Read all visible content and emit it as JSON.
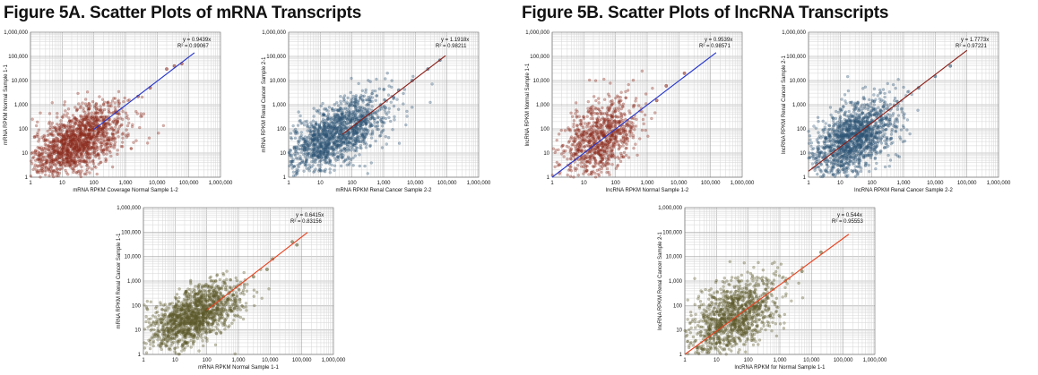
{
  "figures": {
    "a_title": "Figure 5A. Scatter Plots of mRNA Transcripts",
    "b_title": "Figure 5B. Scatter Plots of lncRNA Transcripts"
  },
  "colors": {
    "red_points": "#8b2a1e",
    "blue_points": "#2e5575",
    "olive_points": "#5d5a2c",
    "blue_line": "#2233cc",
    "darkred_line": "#8b1a12",
    "orange_line": "#e8401c"
  },
  "chart_data": [
    {
      "id": "p1",
      "type": "scatter",
      "log_scale": true,
      "xlabel": "mRNA RPKM Coverage Normal Sample 1-2",
      "ylabel": "mRNA RPKM Normal Sample 1-1",
      "x_ticks": [
        "1",
        "10",
        "100",
        "1,000",
        "10,000",
        "100,000",
        "1,000,000"
      ],
      "y_ticks": [
        "1",
        "10",
        "100",
        "1,000",
        "10,000",
        "100,000",
        "1,000,000"
      ],
      "xlim": [
        1,
        1000000
      ],
      "ylim": [
        1,
        1000000
      ],
      "trend_equation": "y = 0.9439x",
      "r_squared": "R² = 0.99067",
      "trend_x_range": [
        100,
        150000
      ],
      "point_color": "red",
      "line_color": "blue",
      "cloud": {
        "center_log10": [
          1.5,
          1.5
        ],
        "spread_log10": [
          0.75,
          0.62
        ],
        "count": 1500
      },
      "high_points": [
        [
          2500,
          2200
        ],
        [
          6000,
          5000
        ],
        [
          20000,
          30000
        ],
        [
          35000,
          40000
        ],
        [
          60000,
          50000
        ]
      ],
      "grid": true,
      "legend": "none"
    },
    {
      "id": "p2",
      "type": "scatter",
      "log_scale": true,
      "xlabel": "mRNA RPKM Renal Cancer Sample 2-2",
      "ylabel": "mRNA RPKM Renal Cancer Sample 2-1",
      "x_ticks": [
        "1",
        "10",
        "100",
        "1,000",
        "10,000",
        "100,000",
        "1,000,000"
      ],
      "y_ticks": [
        "1",
        "10",
        "100",
        "1,000",
        "10,000",
        "100,000",
        "1,000,000"
      ],
      "xlim": [
        1,
        1000000
      ],
      "ylim": [
        1,
        1000000
      ],
      "trend_equation": "y = 1.1918x",
      "r_squared": "R² = 0.98211",
      "trend_x_range": [
        50,
        90000
      ],
      "point_color": "blue",
      "line_color": "darkred",
      "cloud": {
        "center_log10": [
          1.5,
          1.8
        ],
        "spread_log10": [
          0.8,
          0.62
        ],
        "count": 1500
      },
      "high_points": [
        [
          3000,
          4000
        ],
        [
          8000,
          10000
        ],
        [
          25000,
          30000
        ],
        [
          60000,
          70000
        ]
      ],
      "grid": true,
      "legend": "none"
    },
    {
      "id": "p3",
      "type": "scatter",
      "log_scale": true,
      "xlabel": "lncRNA RPKM Normal Sample 1-2",
      "ylabel": "lncRNA RPKM Normal Sample 1-1",
      "x_ticks": [
        "1",
        "10",
        "100",
        "1,000",
        "10,000",
        "100,000",
        "1,000,000"
      ],
      "y_ticks": [
        "1",
        "10",
        "100",
        "1,000",
        "10,000",
        "100,000",
        "1,000,000"
      ],
      "xlim": [
        1,
        1000000
      ],
      "ylim": [
        1,
        1000000
      ],
      "trend_equation": "y = 0.9539x",
      "r_squared": "R² = 0.98571",
      "trend_x_range": [
        1,
        150000
      ],
      "point_color": "red",
      "line_color": "blue",
      "cloud": {
        "center_log10": [
          1.5,
          1.6
        ],
        "spread_log10": [
          0.6,
          0.75
        ],
        "count": 900
      },
      "high_points": [
        [
          2000,
          1500
        ],
        [
          4000,
          6000
        ],
        [
          15000,
          20000
        ]
      ],
      "grid": true,
      "legend": "none"
    },
    {
      "id": "p4",
      "type": "scatter",
      "log_scale": true,
      "xlabel": "lncRNA RPKM Renal Cancer Sample 2-2",
      "ylabel": "lncRNA RPKM Renal Cancer Sample 2-1",
      "x_ticks": [
        "1",
        "10",
        "100",
        "1,000",
        "10,000",
        "100,000",
        "1,000,000"
      ],
      "y_ticks": [
        "1",
        "10",
        "100",
        "1,000",
        "10,000",
        "100,000",
        "1,000,000"
      ],
      "xlim": [
        1,
        1000000
      ],
      "ylim": [
        1,
        1000000
      ],
      "trend_equation": "y = 1.7773x",
      "r_squared": "R² = 0.97221",
      "trend_x_range": [
        1,
        100000
      ],
      "point_color": "blue",
      "line_color": "darkred",
      "cloud": {
        "center_log10": [
          1.4,
          1.6
        ],
        "spread_log10": [
          0.7,
          0.72
        ],
        "count": 1500
      },
      "high_points": [
        [
          3000,
          5000
        ],
        [
          10000,
          15000
        ],
        [
          30000,
          40000
        ]
      ],
      "grid": true,
      "legend": "none"
    },
    {
      "id": "p5",
      "type": "scatter",
      "log_scale": true,
      "xlabel": "mRNA RPKM Normal Sample 1-1",
      "ylabel": "mRNA RPKM Renal Cancer Sample 1-1",
      "x_ticks": [
        "1",
        "10",
        "100",
        "1,000",
        "10,000",
        "100,000",
        "1,000,000"
      ],
      "y_ticks": [
        "1",
        "10",
        "100",
        "1,000",
        "10,000",
        "100,000",
        "1,000,000"
      ],
      "xlim": [
        1,
        1000000
      ],
      "ylim": [
        1,
        1000000
      ],
      "trend_equation": "y = 0.6415x",
      "r_squared": "R² = 0.83156",
      "trend_x_range": [
        100,
        150000
      ],
      "point_color": "olive",
      "line_color": "orange",
      "cloud": {
        "center_log10": [
          1.6,
          1.6
        ],
        "spread_log10": [
          0.7,
          0.55
        ],
        "count": 1500
      },
      "high_points": [
        [
          3000,
          1500
        ],
        [
          8000,
          3000
        ],
        [
          12000,
          8000
        ],
        [
          50000,
          40000
        ],
        [
          70000,
          30000
        ]
      ],
      "grid": true,
      "legend": "none"
    },
    {
      "id": "p6",
      "type": "scatter",
      "log_scale": true,
      "xlabel": "lncRNA RPKM for Normal Sample 1-1",
      "ylabel": "lncRNA RPKM Renal Cancer Sample 2-1",
      "x_ticks": [
        "1",
        "10",
        "100",
        "1,000",
        "10,000",
        "100,000",
        "1,000,000"
      ],
      "y_ticks": [
        "1",
        "10",
        "100",
        "1,000",
        "10,000",
        "100,000",
        "1,000,000"
      ],
      "xlim": [
        1,
        1000000
      ],
      "ylim": [
        1,
        1000000
      ],
      "trend_equation": "y = 0.544x",
      "r_squared": "R² = 0.95553",
      "trend_x_range": [
        1,
        150000
      ],
      "point_color": "olive",
      "line_color": "orange",
      "cloud": {
        "center_log10": [
          1.5,
          1.5
        ],
        "spread_log10": [
          0.7,
          0.72
        ],
        "count": 1200
      },
      "high_points": [
        [
          1500,
          1000
        ],
        [
          5000,
          2500
        ],
        [
          20000,
          15000
        ]
      ],
      "grid": true,
      "legend": "none"
    }
  ]
}
